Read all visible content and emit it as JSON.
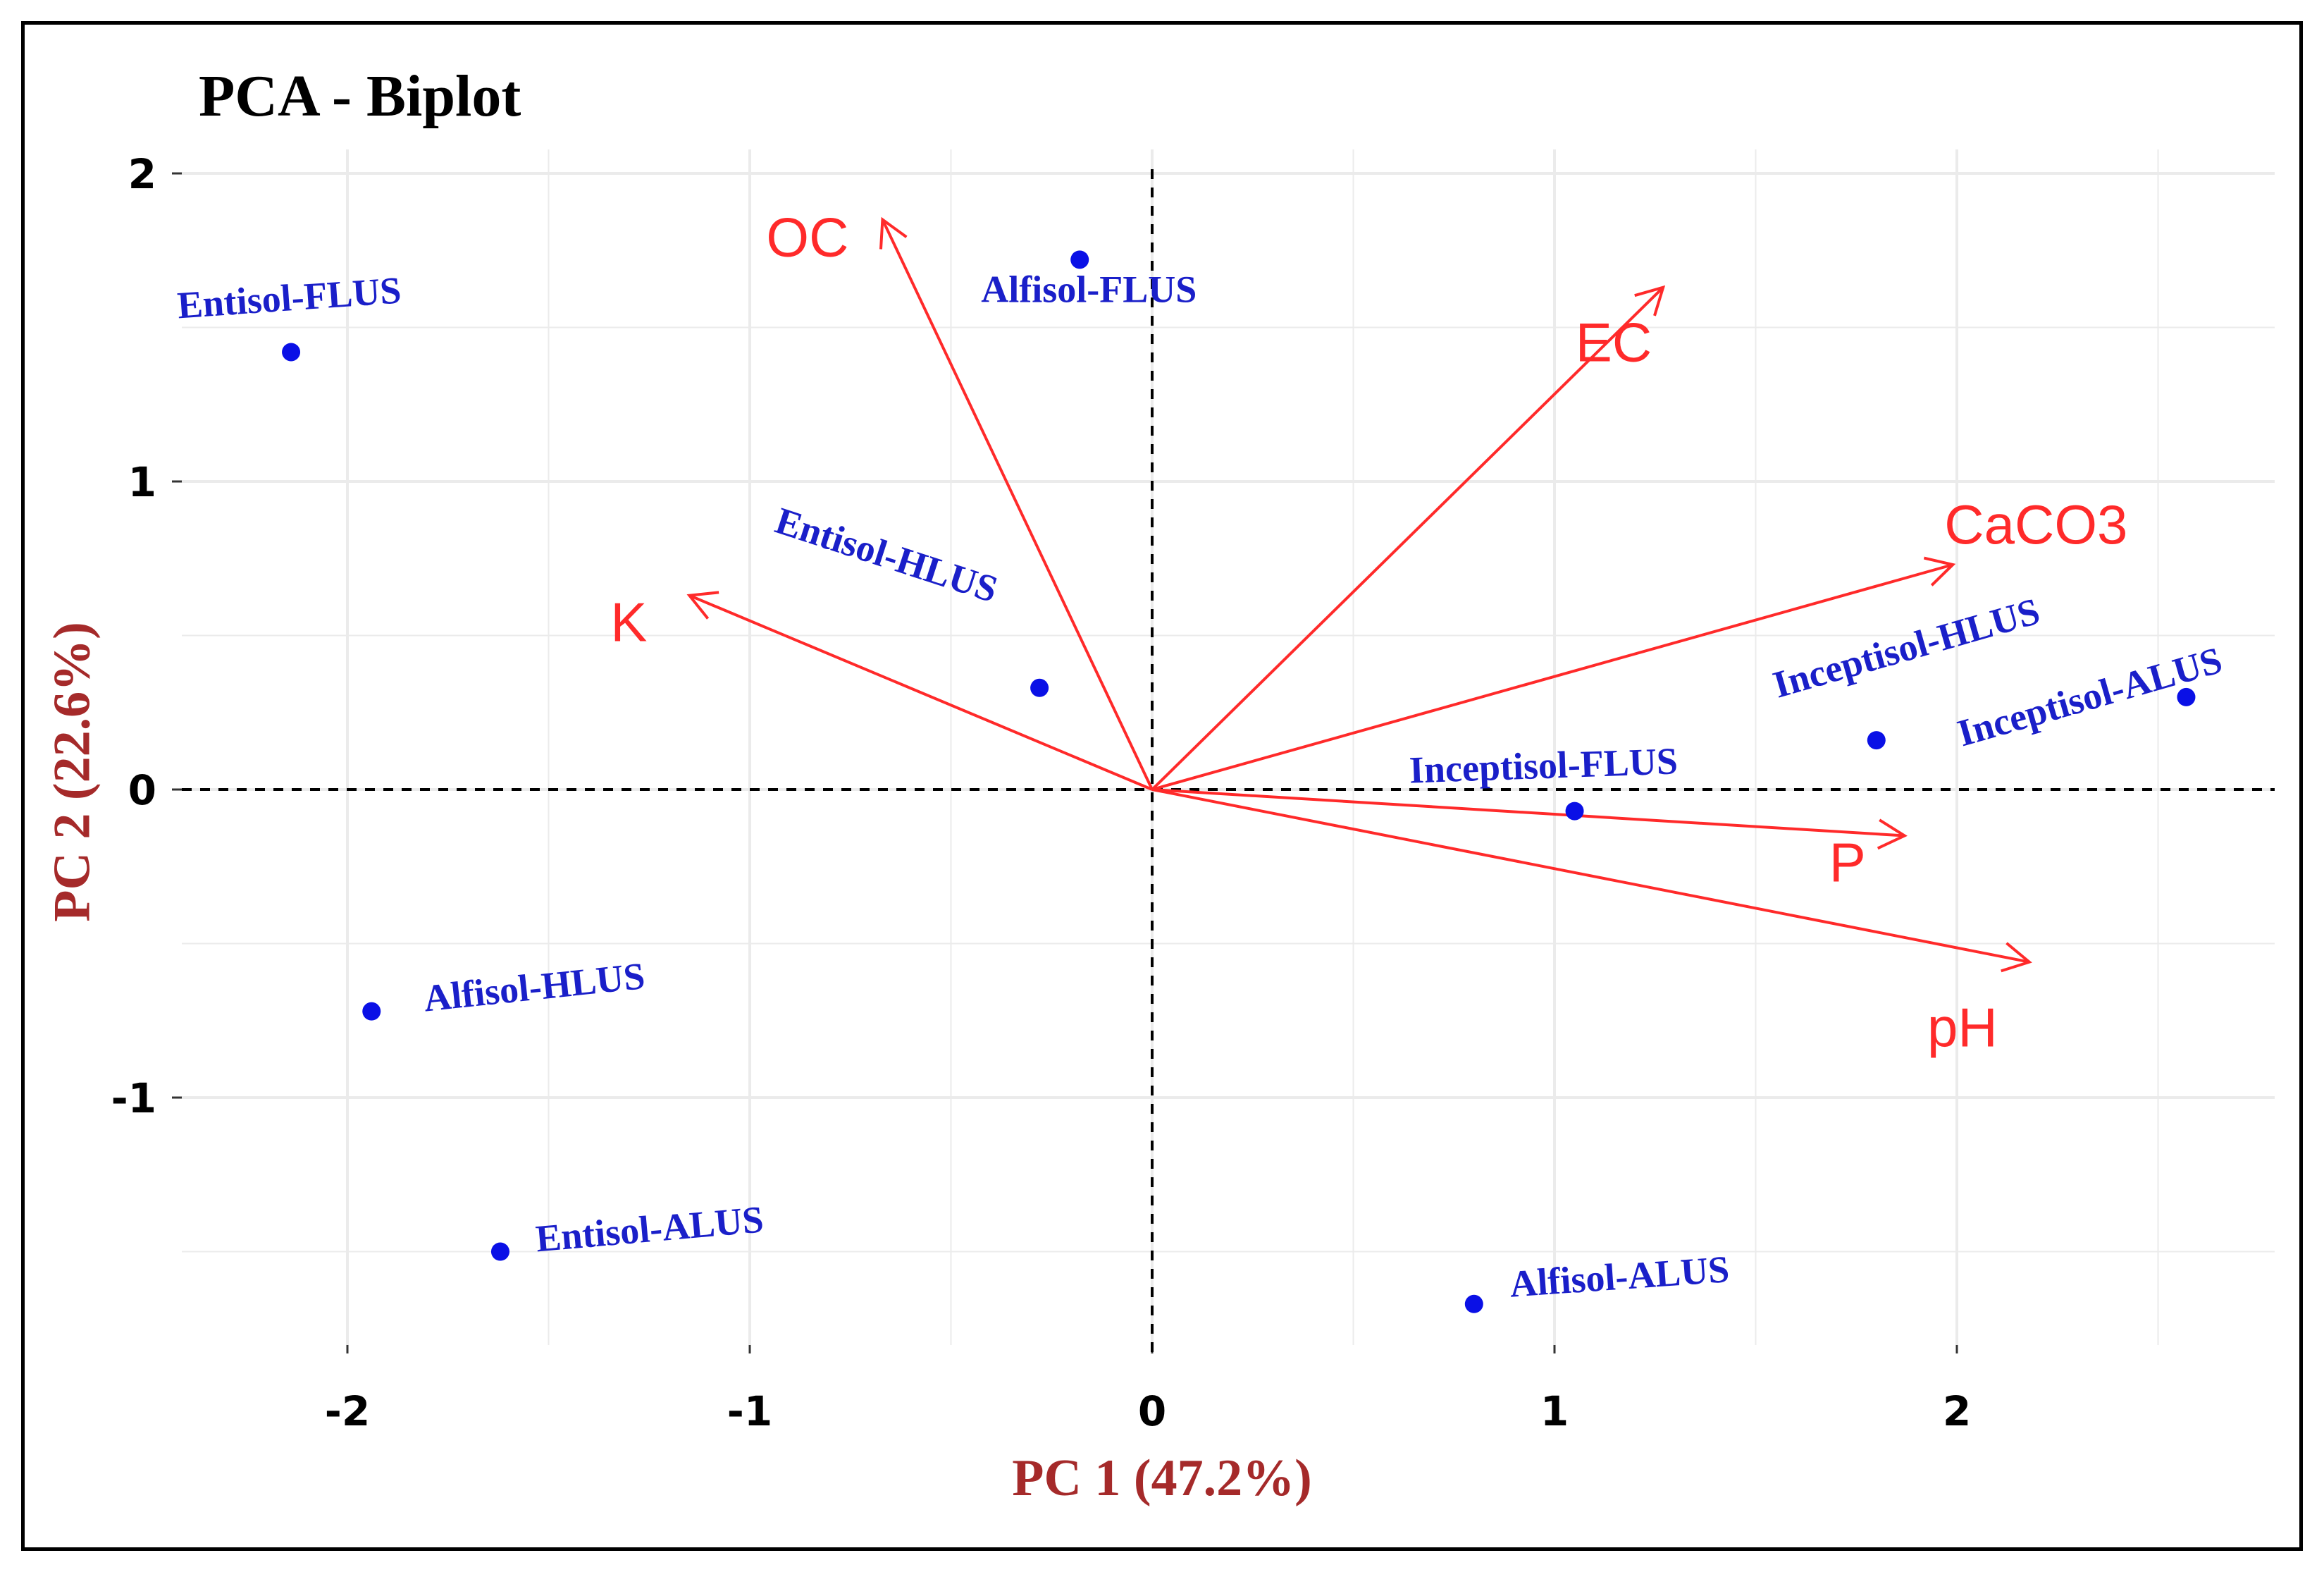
{
  "colors": {
    "point": "#0a10e6",
    "point_label": "#1a1fc9",
    "vector": "#ff2a2a",
    "axis_title": "#a52a2a",
    "grid": "#ebebeb",
    "tick_label": "#000000"
  },
  "chart_data": {
    "type": "scatter",
    "subtype": "pca-biplot",
    "title": "PCA - Biplot",
    "xlabel": "PC 1 (47.2%)",
    "ylabel": "PC 2 (22.6%)",
    "xlim": [
      -2.4,
      2.8
    ],
    "ylim": [
      -1.9,
      2.1
    ],
    "x_ticks": [
      -2,
      -1,
      0,
      1,
      2
    ],
    "x_tick_labels": [
      "-2",
      "-1",
      "0",
      "1",
      "2"
    ],
    "y_ticks": [
      -1,
      0,
      1,
      2
    ],
    "y_tick_labels": [
      "-1",
      "0",
      "1",
      "2"
    ],
    "grid": true,
    "reference_lines": {
      "x": 0,
      "y": 0,
      "style": "dashed"
    },
    "points": [
      {
        "label": "Entisol-FLUS",
        "x": -2.14,
        "y": 1.42
      },
      {
        "label": "Alfisol-FLUS",
        "x": -0.18,
        "y": 1.72
      },
      {
        "label": "Entisol-HLUS",
        "x": -0.28,
        "y": 0.33
      },
      {
        "label": "Inceptisol-FLUS",
        "x": 1.05,
        "y": -0.07
      },
      {
        "label": "Inceptisol-HLUS",
        "x": 1.8,
        "y": 0.16
      },
      {
        "label": "Inceptisol-ALUS",
        "x": 2.57,
        "y": 0.3
      },
      {
        "label": "Alfisol-HLUS",
        "x": -1.94,
        "y": -0.72
      },
      {
        "label": "Entisol-ALUS",
        "x": -1.62,
        "y": -1.5
      },
      {
        "label": "Alfisol-ALUS",
        "x": 0.8,
        "y": -1.67
      }
    ],
    "loadings": [
      {
        "label": "OC",
        "x": -0.67,
        "y": 1.85
      },
      {
        "label": "EC",
        "x": 1.27,
        "y": 1.63
      },
      {
        "label": "CaCO3",
        "x": 1.99,
        "y": 0.73
      },
      {
        "label": "K",
        "x": -1.15,
        "y": 0.63
      },
      {
        "label": "P",
        "x": 1.87,
        "y": -0.15
      },
      {
        "label": "pH",
        "x": 2.18,
        "y": -0.56
      }
    ]
  }
}
